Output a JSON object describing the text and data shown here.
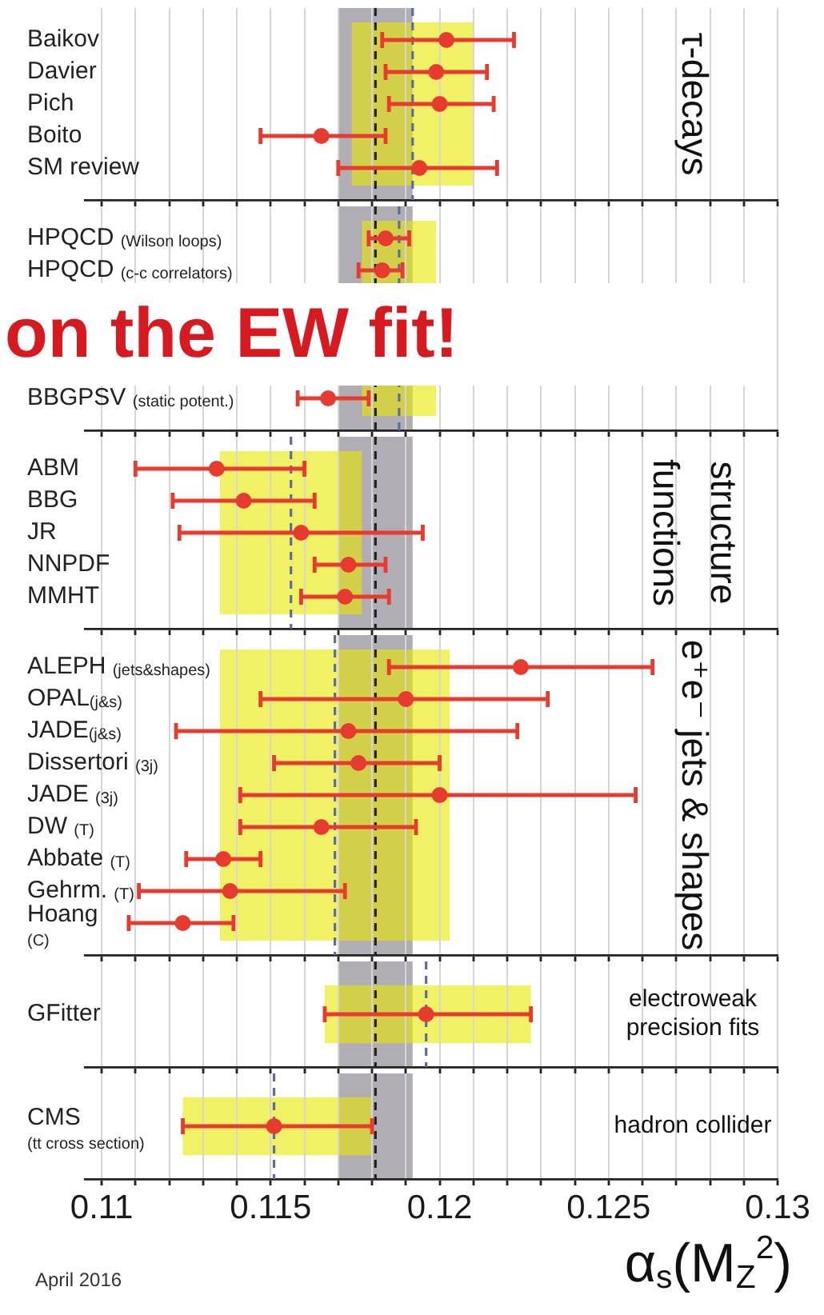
{
  "chart_data": [
    {
      "type": "scatter",
      "orientation": "horizontal",
      "categories": [
        "Baikov",
        "Davier",
        "Pich",
        "Boito",
        "SM review"
      ],
      "values": [
        0.1202,
        0.1199,
        0.12,
        0.1165,
        0.1194
      ],
      "errors": [
        [
          0.1183,
          0.1222
        ],
        [
          0.1184,
          0.1214
        ],
        [
          0.1185,
          0.1216
        ],
        [
          0.1147,
          0.1184
        ],
        [
          0.117,
          0.1217
        ]
      ],
      "color": "#e63b2e",
      "marker": "circle",
      "xlim": [
        0.1095,
        0.13
      ],
      "xticks": [
        0.11,
        {
          "value": 0.111,
          "label": null
        },
        {
          "value": 0.112,
          "label": null
        },
        {
          "value": 0.113,
          "label": null
        },
        {
          "value": 0.114,
          "label": null
        },
        0.115,
        {
          "value": 0.116,
          "label": null
        },
        {
          "value": 0.117,
          "label": null
        },
        {
          "value": 0.118,
          "label": null
        },
        {
          "value": 0.119,
          "label": null
        },
        0.12,
        {
          "value": 0.121,
          "label": null
        },
        {
          "value": 0.122,
          "label": null
        },
        {
          "value": 0.123,
          "label": null
        },
        {
          "value": 0.124,
          "label": null
        },
        0.125,
        {
          "value": 0.126,
          "label": null
        },
        {
          "value": 0.127,
          "label": null
        },
        {
          "value": 0.128,
          "label": null
        },
        {
          "value": 0.129,
          "label": null
        },
        0.13
      ],
      "grid": "x",
      "tick_labels": "y",
      "bands": [
        {
          "axis": "x",
          "from": 0.117,
          "to": 0.1192,
          "color": "#7d7784"
        },
        {
          "axis": "x",
          "from": 0.1174,
          "to": 0.121,
          "color": "#e8e800"
        }
      ],
      "ref_lines": [
        {
          "axis": "x",
          "value": 0.1181,
          "color": "#222222",
          "line_style": "dashed"
        },
        {
          "axis": "x",
          "value": 0.1192,
          "color": "#5b6f9e",
          "line_style": "dashed"
        }
      ],
      "annotations": [
        "τ-decays"
      ]
    },
    {
      "type": "scatter",
      "orientation": "horizontal",
      "title": "on the EW fit!",
      "categories": [
        "HPQCD (Wilson loops)",
        "HPQCD (c-c correlators)",
        null,
        null,
        null,
        "BBGPSV (static potent.)"
      ],
      "values": [
        0.1184,
        0.1183,
        null,
        null,
        null,
        0.1167
      ],
      "errors": [
        [
          0.1179,
          0.1191
        ],
        [
          0.1176,
          0.1189
        ],
        null,
        null,
        null,
        [
          0.1158,
          0.1179
        ]
      ],
      "color": "#e63b2e",
      "marker": "circle",
      "xlim": [
        0.1095,
        0.13
      ],
      "xticks": [
        0.11,
        {
          "value": 0.111,
          "label": null
        },
        {
          "value": 0.112,
          "label": null
        },
        {
          "value": 0.113,
          "label": null
        },
        {
          "value": 0.114,
          "label": null
        },
        0.115,
        {
          "value": 0.116,
          "label": null
        },
        {
          "value": 0.117,
          "label": null
        },
        {
          "value": 0.118,
          "label": null
        },
        {
          "value": 0.119,
          "label": null
        },
        0.12,
        {
          "value": 0.121,
          "label": null
        },
        {
          "value": 0.122,
          "label": null
        },
        {
          "value": 0.123,
          "label": null
        },
        {
          "value": 0.124,
          "label": null
        },
        0.125,
        {
          "value": 0.126,
          "label": null
        },
        {
          "value": 0.127,
          "label": null
        },
        {
          "value": 0.128,
          "label": null
        },
        {
          "value": 0.129,
          "label": null
        },
        0.13
      ],
      "grid": "x",
      "tick_labels": "y",
      "bands": [
        {
          "axis": "x",
          "from": 0.117,
          "to": 0.1192,
          "color": "#7d7784"
        },
        {
          "axis": "x",
          "from": 0.1177,
          "to": 0.1199,
          "color": "#e8e800"
        }
      ],
      "ref_lines": [
        {
          "axis": "x",
          "value": 0.1181,
          "color": "#222222",
          "line_style": "dashed"
        },
        {
          "axis": "x",
          "value": 0.1188,
          "color": "#5b6f9e",
          "line_style": "dashed"
        }
      ]
    },
    {
      "type": "scatter",
      "orientation": "horizontal",
      "categories": [
        "ABM",
        "BBG",
        "JR",
        "NNPDF",
        "MMHT"
      ],
      "values": [
        0.1134,
        0.1142,
        0.1159,
        0.1173,
        0.1172
      ],
      "errors": [
        [
          0.111,
          0.116
        ],
        [
          0.1121,
          0.1163
        ],
        [
          0.1123,
          0.1195
        ],
        [
          0.1163,
          0.1184
        ],
        [
          0.1159,
          0.1185
        ]
      ],
      "color": "#e63b2e",
      "marker": "circle",
      "xlim": [
        0.1095,
        0.13
      ],
      "xticks": [
        0.11,
        {
          "value": 0.111,
          "label": null
        },
        {
          "value": 0.112,
          "label": null
        },
        {
          "value": 0.113,
          "label": null
        },
        {
          "value": 0.114,
          "label": null
        },
        0.115,
        {
          "value": 0.116,
          "label": null
        },
        {
          "value": 0.117,
          "label": null
        },
        {
          "value": 0.118,
          "label": null
        },
        {
          "value": 0.119,
          "label": null
        },
        0.12,
        {
          "value": 0.121,
          "label": null
        },
        {
          "value": 0.122,
          "label": null
        },
        {
          "value": 0.123,
          "label": null
        },
        {
          "value": 0.124,
          "label": null
        },
        0.125,
        {
          "value": 0.126,
          "label": null
        },
        {
          "value": 0.127,
          "label": null
        },
        {
          "value": 0.128,
          "label": null
        },
        {
          "value": 0.129,
          "label": null
        },
        0.13
      ],
      "grid": "x",
      "tick_labels": "y",
      "bands": [
        {
          "axis": "x",
          "from": 0.117,
          "to": 0.1192,
          "color": "#7d7784"
        },
        {
          "axis": "x",
          "from": 0.1135,
          "to": 0.1177,
          "color": "#e8e800"
        }
      ],
      "ref_lines": [
        {
          "axis": "x",
          "value": 0.1181,
          "color": "#222222",
          "line_style": "dashed"
        },
        {
          "axis": "x",
          "value": 0.1156,
          "color": "#5b6f9e",
          "line_style": "dashed"
        }
      ],
      "annotations": [
        "structure functions"
      ]
    },
    {
      "type": "scatter",
      "orientation": "horizontal",
      "categories": [
        "ALEPH (jets&shapes)",
        "OPAL(j&s)",
        "JADE(j&s)",
        "Dissertori (3j)",
        "JADE (3j)",
        "DW (T)",
        "Abbate (T)",
        "Gehrm. (T)",
        "Hoang\n(C)"
      ],
      "values": [
        0.1224,
        0.119,
        0.1173,
        0.1176,
        0.12,
        0.1165,
        0.1136,
        0.1138,
        0.1124
      ],
      "errors": [
        [
          0.1185,
          0.1263
        ],
        [
          0.1147,
          0.1232
        ],
        [
          0.1122,
          0.1223
        ],
        [
          0.1151,
          0.12
        ],
        [
          0.1141,
          0.1258
        ],
        [
          0.1141,
          0.1193
        ],
        [
          0.1125,
          0.1147
        ],
        [
          0.1111,
          0.1172
        ],
        [
          0.1108,
          0.1139
        ]
      ],
      "color": "#e63b2e",
      "marker": "circle",
      "xlim": [
        0.1095,
        0.13
      ],
      "xticks": [
        0.11,
        {
          "value": 0.111,
          "label": null
        },
        {
          "value": 0.112,
          "label": null
        },
        {
          "value": 0.113,
          "label": null
        },
        {
          "value": 0.114,
          "label": null
        },
        0.115,
        {
          "value": 0.116,
          "label": null
        },
        {
          "value": 0.117,
          "label": null
        },
        {
          "value": 0.118,
          "label": null
        },
        {
          "value": 0.119,
          "label": null
        },
        0.12,
        {
          "value": 0.121,
          "label": null
        },
        {
          "value": 0.122,
          "label": null
        },
        {
          "value": 0.123,
          "label": null
        },
        {
          "value": 0.124,
          "label": null
        },
        0.125,
        {
          "value": 0.126,
          "label": null
        },
        {
          "value": 0.127,
          "label": null
        },
        {
          "value": 0.128,
          "label": null
        },
        {
          "value": 0.129,
          "label": null
        },
        0.13
      ],
      "grid": "x",
      "tick_labels": "y",
      "bands": [
        {
          "axis": "x",
          "from": 0.117,
          "to": 0.1192,
          "color": "#7d7784"
        },
        {
          "axis": "x",
          "from": 0.1135,
          "to": 0.1203,
          "color": "#e8e800"
        }
      ],
      "ref_lines": [
        {
          "axis": "x",
          "value": 0.1181,
          "color": "#222222",
          "line_style": "dashed"
        },
        {
          "axis": "x",
          "value": 0.1169,
          "color": "#5b6f9e",
          "line_style": "dashed"
        }
      ],
      "annotations": [
        "e⁺e⁻ jets & shapes"
      ]
    },
    {
      "type": "scatter",
      "orientation": "horizontal",
      "categories": [
        "GFitter"
      ],
      "values": [
        0.1196
      ],
      "errors": [
        [
          0.1166,
          0.1227
        ]
      ],
      "color": "#e63b2e",
      "marker": "circle",
      "xlim": [
        0.1095,
        0.13
      ],
      "xticks": [
        0.11,
        {
          "value": 0.111,
          "label": null
        },
        {
          "value": 0.112,
          "label": null
        },
        {
          "value": 0.113,
          "label": null
        },
        {
          "value": 0.114,
          "label": null
        },
        0.115,
        {
          "value": 0.116,
          "label": null
        },
        {
          "value": 0.117,
          "label": null
        },
        {
          "value": 0.118,
          "label": null
        },
        {
          "value": 0.119,
          "label": null
        },
        0.12,
        {
          "value": 0.121,
          "label": null
        },
        {
          "value": 0.122,
          "label": null
        },
        {
          "value": 0.123,
          "label": null
        },
        {
          "value": 0.124,
          "label": null
        },
        0.125,
        {
          "value": 0.126,
          "label": null
        },
        {
          "value": 0.127,
          "label": null
        },
        {
          "value": 0.128,
          "label": null
        },
        {
          "value": 0.129,
          "label": null
        },
        0.13
      ],
      "grid": "x",
      "tick_labels": "y",
      "bands": [
        {
          "axis": "x",
          "from": 0.117,
          "to": 0.1192,
          "color": "#7d7784"
        },
        {
          "axis": "x",
          "from": 0.1166,
          "to": 0.1227,
          "color": "#e8e800"
        }
      ],
      "ref_lines": [
        {
          "axis": "x",
          "value": 0.1181,
          "color": "#222222",
          "line_style": "dashed"
        },
        {
          "axis": "x",
          "value": 0.1196,
          "color": "#5b6f9e",
          "line_style": "dashed"
        }
      ],
      "annotations": [
        "electroweak precision fits"
      ]
    },
    {
      "type": "scatter",
      "orientation": "horizontal",
      "xlabel": "α$_{s}$(M$_{Z}$$^{2}$)",
      "categories": [
        "CMS\n(tt cross section)"
      ],
      "values": [
        0.1151
      ],
      "errors": [
        [
          0.1124,
          0.118
        ]
      ],
      "color": "#e63b2e",
      "marker": "circle",
      "xlim": [
        0.1095,
        0.13
      ],
      "xticks": [
        0.11,
        {
          "value": 0.111,
          "label": null
        },
        {
          "value": 0.112,
          "label": null
        },
        {
          "value": 0.113,
          "label": null
        },
        {
          "value": 0.114,
          "label": null
        },
        0.115,
        {
          "value": 0.116,
          "label": null
        },
        {
          "value": 0.117,
          "label": null
        },
        {
          "value": 0.118,
          "label": null
        },
        {
          "value": 0.119,
          "label": null
        },
        0.12,
        {
          "value": 0.121,
          "label": null
        },
        {
          "value": 0.122,
          "label": null
        },
        {
          "value": 0.123,
          "label": null
        },
        {
          "value": 0.124,
          "label": null
        },
        0.125,
        {
          "value": 0.126,
          "label": null
        },
        {
          "value": 0.127,
          "label": null
        },
        {
          "value": 0.128,
          "label": null
        },
        {
          "value": 0.129,
          "label": null
        },
        0.13
      ],
      "grid": "x",
      "bands": [
        {
          "axis": "x",
          "from": 0.117,
          "to": 0.1192,
          "color": "#7d7784"
        },
        {
          "axis": "x",
          "from": 0.1124,
          "to": 0.118,
          "color": "#e8e800"
        }
      ],
      "ref_lines": [
        {
          "axis": "x",
          "value": 0.1181,
          "color": "#222222",
          "line_style": "dashed"
        },
        {
          "axis": "x",
          "value": 0.1151,
          "color": "#5b6f9e",
          "line_style": "dashed"
        }
      ],
      "annotations": [
        "hadron collider",
        "April 2016"
      ]
    }
  ]
}
